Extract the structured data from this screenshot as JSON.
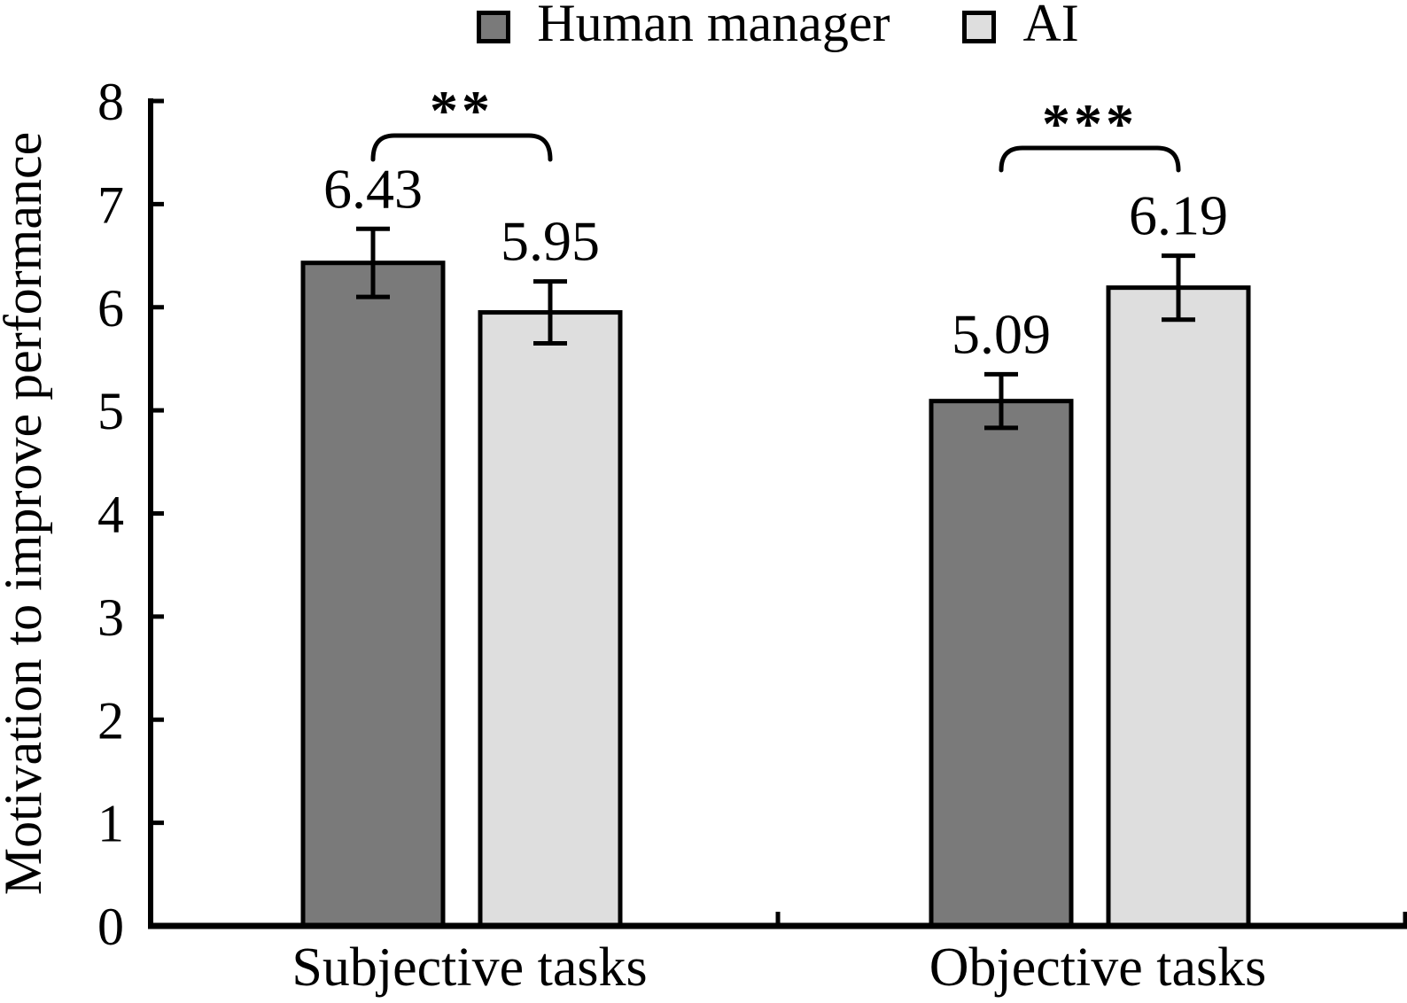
{
  "figure": {
    "background": "#ffffff",
    "text_color": "#000000",
    "axis_color": "#000000"
  },
  "chart_data": {
    "type": "bar",
    "title": "",
    "xlabel": "",
    "ylabel": "Motivation to improve performance",
    "categories": [
      "Subjective tasks",
      "Objective tasks"
    ],
    "series": [
      {
        "name": "Human manager",
        "color": "#7a7a7a",
        "edge_color": "#000000",
        "values": [
          6.43,
          5.09
        ],
        "errors": [
          0.33,
          0.26
        ],
        "value_labels": [
          "6.43",
          "5.09"
        ]
      },
      {
        "name": "AI",
        "color": "#dedede",
        "edge_color": "#000000",
        "values": [
          5.95,
          6.19
        ],
        "errors": [
          0.3,
          0.31
        ],
        "value_labels": [
          "5.95",
          "6.19"
        ]
      }
    ],
    "significance": [
      {
        "category": "Subjective tasks",
        "pair": [
          "Human manager",
          "AI"
        ],
        "label": "**"
      },
      {
        "category": "Objective tasks",
        "pair": [
          "Human manager",
          "AI"
        ],
        "label": "***"
      }
    ],
    "ylim": [
      0,
      8
    ],
    "yticks": [
      0,
      1,
      2,
      3,
      4,
      5,
      6,
      7,
      8
    ],
    "ytick_labels": [
      "0",
      "1",
      "2",
      "3",
      "4",
      "5",
      "6",
      "7",
      "8"
    ],
    "grid": false,
    "legend_position": "top",
    "error_bars": true
  }
}
